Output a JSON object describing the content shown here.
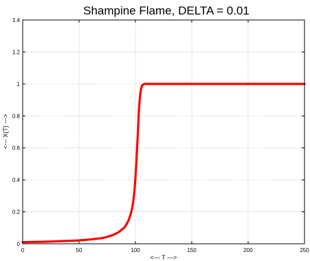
{
  "chart_data": {
    "type": "line",
    "title": "Shampine Flame, DELTA = 0.01",
    "xlabel": "<--- T --->",
    "ylabel": "<--- X(T) --->",
    "xlim": [
      0,
      250
    ],
    "ylim": [
      0,
      1.4
    ],
    "xticks": [
      0,
      50,
      100,
      150,
      200,
      250
    ],
    "yticks": [
      0,
      0.2,
      0.4,
      0.6,
      0.8,
      1,
      1.2,
      1.4
    ],
    "grid": true,
    "line_color": "#ff0000",
    "series": [
      {
        "x": [
          0,
          20,
          40,
          50,
          60,
          70,
          75,
          80,
          85,
          90,
          92,
          94,
          96,
          97,
          98,
          99,
          100,
          101,
          102,
          103,
          104,
          105,
          106,
          107,
          108,
          110,
          115,
          150,
          200,
          250
        ],
        "y": [
          0.01,
          0.013,
          0.018,
          0.021,
          0.027,
          0.035,
          0.043,
          0.055,
          0.072,
          0.1,
          0.12,
          0.148,
          0.19,
          0.22,
          0.26,
          0.32,
          0.41,
          0.53,
          0.67,
          0.82,
          0.92,
          0.97,
          0.99,
          0.997,
          1.0,
          1.0,
          1.0,
          1.0,
          1.0,
          1.0
        ]
      }
    ]
  }
}
